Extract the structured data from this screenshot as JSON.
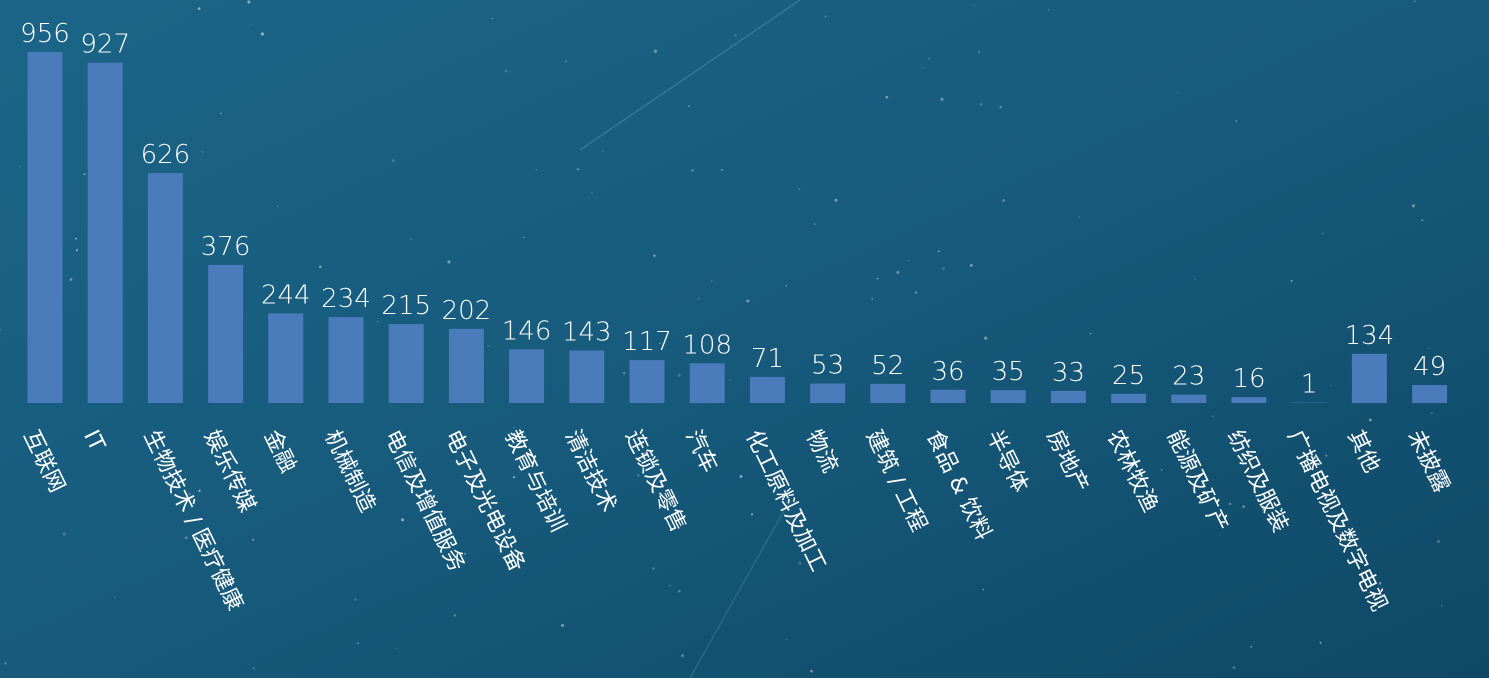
{
  "chart_data": {
    "type": "bar",
    "categories": [
      "互联网",
      "IT",
      "生物技术 / 医疗健康",
      "娱乐传媒",
      "金融",
      "机械制造",
      "电信及增值服务",
      "电子及光电设备",
      "教育与培训",
      "清洁技术",
      "连锁及零售",
      "汽车",
      "化工原料及加工",
      "物流",
      "建筑 / 工程",
      "食品 & 饮料",
      "半导体",
      "房地产",
      "农林牧渔",
      "能源及矿产",
      "纺织及服装",
      "广播电视及数字电视",
      "其他",
      "未披露"
    ],
    "values": [
      956,
      927,
      626,
      376,
      244,
      234,
      215,
      202,
      146,
      143,
      117,
      108,
      71,
      53,
      52,
      36,
      35,
      33,
      25,
      23,
      16,
      1,
      134,
      49
    ],
    "color": "#4a7bbb"
  }
}
